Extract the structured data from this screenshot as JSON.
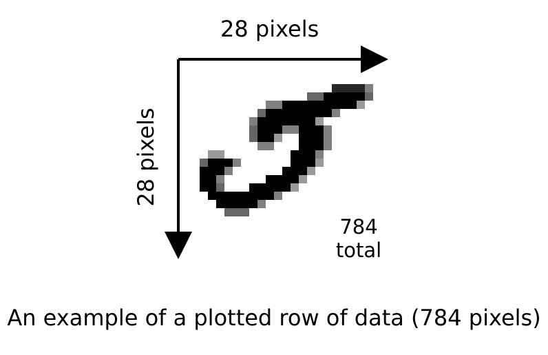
{
  "axis_top_label": "28 pixels",
  "axis_side_label": "28 pixels",
  "total_count": "784",
  "total_word": "total",
  "caption": "An example of a plotted row of data (784 pixels)"
}
